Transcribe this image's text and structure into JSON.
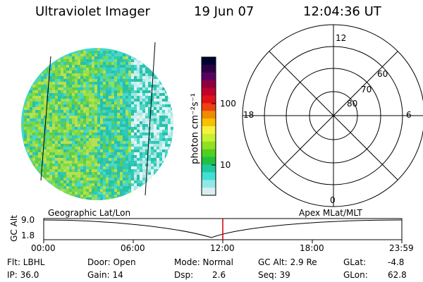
{
  "header": {
    "title": "Ultraviolet Imager",
    "date": "19 Jun 07",
    "time": "12:04:36 UT"
  },
  "colorbar": {
    "label": "photon cm⁻²s⁻¹",
    "ticks": [
      "100",
      "10"
    ],
    "colors": [
      "#000033",
      "#2a0044",
      "#5a0060",
      "#8a0040",
      "#c0002a",
      "#e0101a",
      "#f04010",
      "#f08a00",
      "#f8c000",
      "#f8f040",
      "#c8f030",
      "#90e020",
      "#50d020",
      "#20c040",
      "#20c8a0",
      "#40e0d0",
      "#90e8e8",
      "#d8eef0"
    ]
  },
  "polar": {
    "mlt_labels": [
      "12",
      "18",
      "6",
      "0"
    ],
    "lat_labels": [
      "60",
      "70",
      "80"
    ]
  },
  "timeline": {
    "left_caption": "Geographic Lat/Lon",
    "right_caption": "Apex MLat/MLT",
    "axis_title": "GC Alt",
    "y_ticks": [
      "9.0",
      "1.8"
    ],
    "x_ticks": [
      "00:00",
      "06:00",
      "12:00",
      "18:00",
      "23:59"
    ]
  },
  "info": {
    "flt": "Flt: LBHL",
    "ip": "IP: 36.0",
    "door": "Door: Open",
    "gain": "Gain: 14",
    "mode": "Mode: Normal",
    "dsp": "Dsp:",
    "dsp_value": "2.6",
    "gc_alt": "GC Alt: 2.9 Re",
    "seq": "Seq: 39",
    "glat": "GLat:",
    "glat_value": "-4.8",
    "glon": "GLon:",
    "glon_value": "62.8"
  }
}
